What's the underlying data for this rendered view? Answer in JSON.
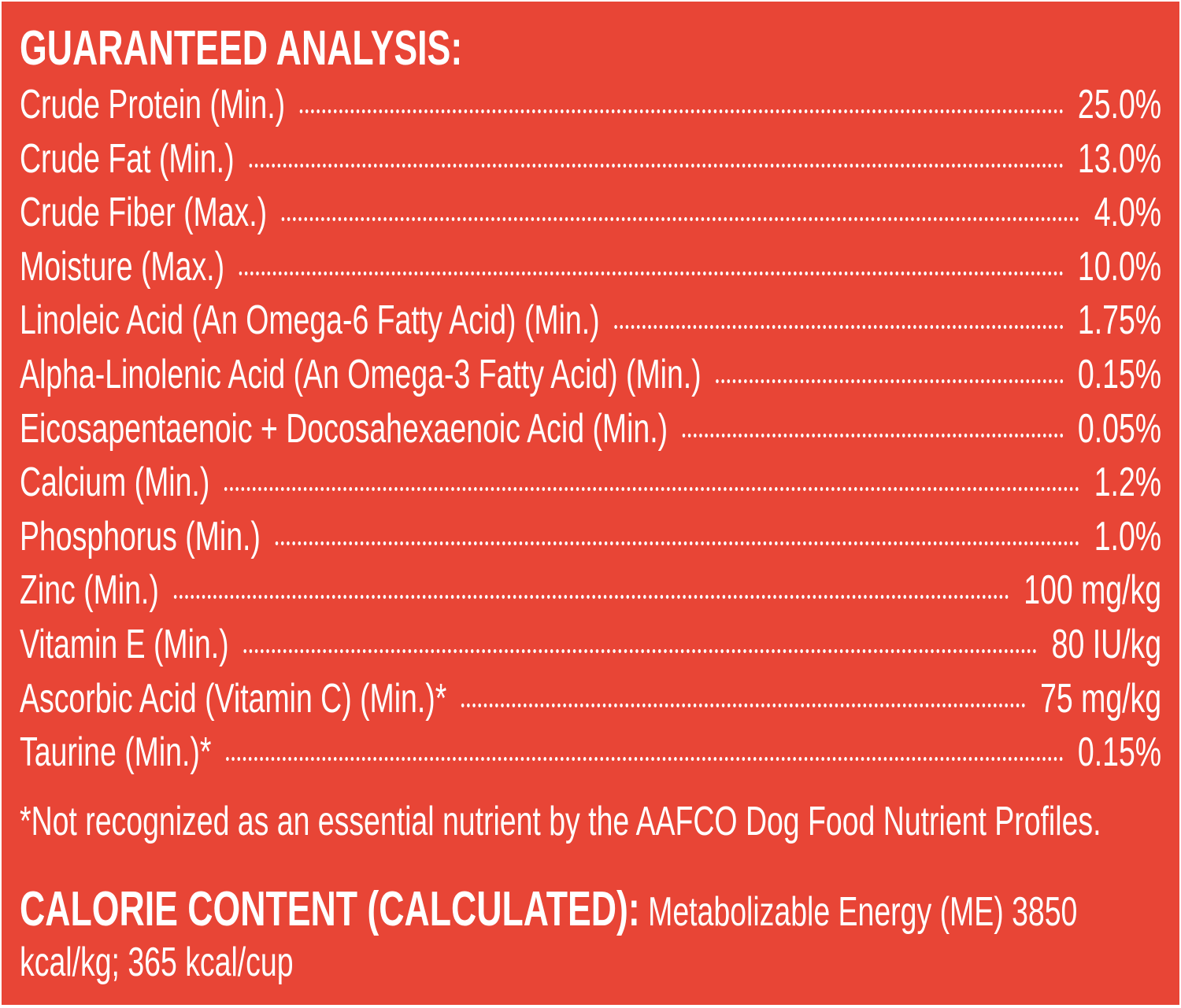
{
  "title": "GUARANTEED ANALYSIS:",
  "rows": [
    [
      "Crude Protein (Min.)",
      "25.0%"
    ],
    [
      "Crude Fat (Min.)",
      "13.0%"
    ],
    [
      "Crude Fiber (Max.)",
      "4.0%"
    ],
    [
      "Moisture (Max.)",
      "10.0%"
    ],
    [
      "Linoleic Acid (An Omega-6 Fatty Acid) (Min.)",
      "1.75%"
    ],
    [
      "Alpha-Linolenic Acid (An Omega-3 Fatty Acid) (Min.)",
      "0.15%"
    ],
    [
      "Eicosapentaenoic + Docosahexaenoic Acid (Min.)",
      "0.05%"
    ],
    [
      "Calcium (Min.)",
      "1.2%"
    ],
    [
      "Phosphorus (Min.)",
      "1.0%"
    ],
    [
      "Zinc (Min.)",
      "100 mg/kg"
    ],
    [
      "Vitamin E (Min.)",
      "80 IU/kg"
    ],
    [
      "Ascorbic Acid (Vitamin C) (Min.)*",
      "75 mg/kg"
    ],
    [
      "Taurine (Min.)*",
      "0.15%"
    ]
  ],
  "footnote": "*Not recognized as an essential nutrient by the AAFCO Dog Food Nutrient Profiles.",
  "calorie": {
    "heading": "CALORIE CONTENT (CALCULATED):",
    "text": "Metabolizable Energy (ME) 3850 kcal/kg; 365 kcal/cup"
  }
}
